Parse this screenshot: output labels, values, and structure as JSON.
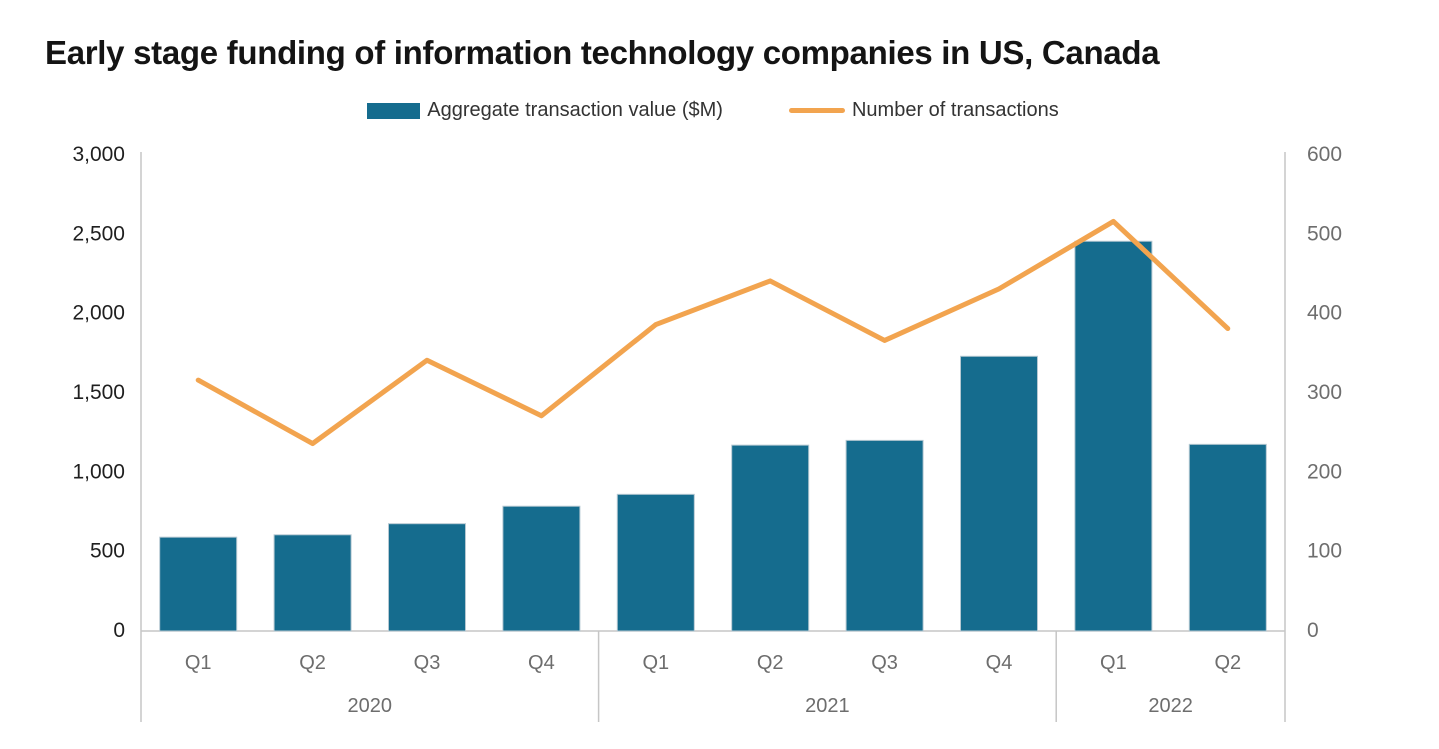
{
  "title": "Early stage funding of information technology companies in US, Canada",
  "legend": {
    "items": [
      {
        "label": "Aggregate transaction value ($M)",
        "swatch": "bar"
      },
      {
        "label": "Number of transactions",
        "swatch": "line"
      }
    ]
  },
  "colors": {
    "bar": "#156C8E",
    "bar_stroke": "#b5c8d2",
    "line": "#F2A44F",
    "axis": "#c6c6c6",
    "left_tick_text": "#1f1f1f",
    "right_tick_text": "#6e6e6e",
    "bottom_label_text": "#6d6d6d",
    "title_text": "#141414"
  },
  "chart_data": {
    "type": "combo-bar-line",
    "title": "Early stage funding of information technology companies in US, Canada",
    "categories": [
      "Q1",
      "Q2",
      "Q3",
      "Q4",
      "Q1",
      "Q2",
      "Q3",
      "Q4",
      "Q1",
      "Q2"
    ],
    "year_groups": [
      {
        "label": "2020",
        "quarters": 4
      },
      {
        "label": "2021",
        "quarters": 4
      },
      {
        "label": "2022",
        "quarters": 2
      }
    ],
    "series": [
      {
        "name": "Aggregate transaction value ($M)",
        "type": "bar",
        "axis": "left",
        "values": [
          585,
          600,
          670,
          780,
          855,
          1165,
          1195,
          1725,
          2450,
          1170
        ]
      },
      {
        "name": "Number of transactions",
        "type": "line",
        "axis": "right",
        "values": [
          315,
          235,
          340,
          270,
          385,
          440,
          365,
          430,
          515,
          380
        ]
      }
    ],
    "left_axis": {
      "min": 0,
      "max": 3000,
      "tick_labels": [
        "0",
        "500",
        "1,000",
        "1,500",
        "2,000",
        "2,500",
        "3,000"
      ]
    },
    "right_axis": {
      "min": 0,
      "max": 600,
      "tick_labels": [
        "0",
        "100",
        "200",
        "300",
        "400",
        "500",
        "600"
      ]
    },
    "grid": false,
    "legend_position": "top"
  }
}
